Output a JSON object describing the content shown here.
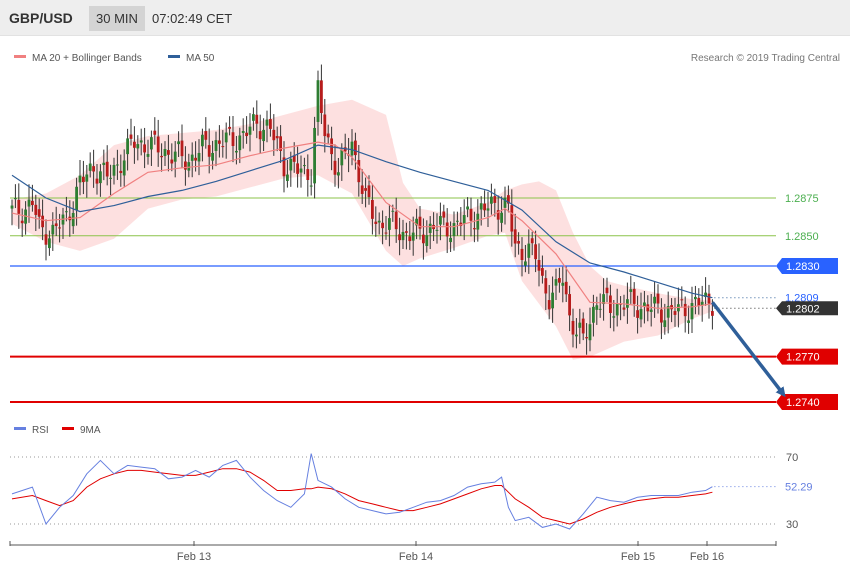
{
  "header": {
    "symbol": "GBP/USD",
    "timeframe": "30 MIN",
    "time": "07:02:49 CET"
  },
  "legend": {
    "items": [
      {
        "label": "MA 20 + Bollinger Bands",
        "color": "#f08080"
      },
      {
        "label": "MA 50",
        "color": "#2f5f99"
      }
    ],
    "copyright": "Research © 2019 Trading Central"
  },
  "colors": {
    "up": "#2e7d32",
    "down": "#b71c1c",
    "ma50": "#2f5f99",
    "ma20": "#f08080",
    "bands_fill": "#fddada",
    "rsi": "#6680e0",
    "rsi_ma": "#e00000",
    "resistance_green": "#8bc34a",
    "level_blue": "#2962ff",
    "support_red": "#e00000",
    "arrow": "#2f5f99"
  },
  "chart_data": {
    "type": "candlestick",
    "x_labels": [
      "Feb 13",
      "Feb 14",
      "Feb 15",
      "Feb 16"
    ],
    "ylim": [
      1.27,
      1.299
    ],
    "levels": [
      {
        "value": 1.2875,
        "label": "1.2875",
        "kind": "resistance",
        "color": "#8bc34a"
      },
      {
        "value": 1.285,
        "label": "1.2850",
        "kind": "resistance",
        "color": "#8bc34a"
      },
      {
        "value": 1.283,
        "label": "1.2830",
        "kind": "pivot",
        "color": "#2962ff"
      },
      {
        "value": 1.277,
        "label": "1.2770",
        "kind": "support",
        "color": "#e00000"
      },
      {
        "value": 1.274,
        "label": "1.2740",
        "kind": "support",
        "color": "#e00000"
      }
    ],
    "ma50_current": {
      "value": 1.2809,
      "label": "1.2809"
    },
    "last_price": {
      "value": 1.2802,
      "label": "1.2802"
    },
    "close_path": [
      [
        0,
        1.2866
      ],
      [
        4,
        1.2868
      ],
      [
        6,
        1.2872
      ],
      [
        8,
        1.2855
      ],
      [
        12,
        1.2852
      ],
      [
        16,
        1.2862
      ],
      [
        20,
        1.2884
      ],
      [
        24,
        1.2896
      ],
      [
        28,
        1.2888
      ],
      [
        32,
        1.29
      ],
      [
        36,
        1.2912
      ],
      [
        40,
        1.291
      ],
      [
        46,
        1.2905
      ],
      [
        52,
        1.29
      ],
      [
        56,
        1.2908
      ],
      [
        62,
        1.2912
      ],
      [
        68,
        1.2916
      ],
      [
        72,
        1.2925
      ],
      [
        76,
        1.292
      ],
      [
        80,
        1.2898
      ],
      [
        84,
        1.2893
      ],
      [
        88,
        1.2892
      ],
      [
        90,
        1.2945
      ],
      [
        92,
        1.2918
      ],
      [
        96,
        1.2893
      ],
      [
        100,
        1.2912
      ],
      [
        104,
        1.2872
      ],
      [
        108,
        1.2858
      ],
      [
        112,
        1.2857
      ],
      [
        116,
        1.2851
      ],
      [
        120,
        1.2852
      ],
      [
        124,
        1.2856
      ],
      [
        130,
        1.2856
      ],
      [
        134,
        1.2862
      ],
      [
        138,
        1.2866
      ],
      [
        142,
        1.2871
      ],
      [
        146,
        1.2868
      ],
      [
        148,
        1.2842
      ],
      [
        152,
        1.284
      ],
      [
        154,
        1.2836
      ],
      [
        156,
        1.282
      ],
      [
        158,
        1.281
      ],
      [
        160,
        1.2812
      ],
      [
        162,
        1.2823
      ],
      [
        164,
        1.2797
      ],
      [
        166,
        1.2787
      ],
      [
        168,
        1.278
      ],
      [
        170,
        1.2794
      ],
      [
        172,
        1.2808
      ],
      [
        176,
        1.2802
      ],
      [
        180,
        1.2806
      ],
      [
        184,
        1.2804
      ],
      [
        188,
        1.2802
      ],
      [
        192,
        1.28
      ],
      [
        196,
        1.28
      ],
      [
        200,
        1.2804
      ],
      [
        204,
        1.2806
      ],
      [
        206,
        1.2807
      ]
    ],
    "ma50_path": [
      [
        0,
        1.289
      ],
      [
        10,
        1.2875
      ],
      [
        20,
        1.2866
      ],
      [
        30,
        1.287
      ],
      [
        40,
        1.2876
      ],
      [
        50,
        1.288
      ],
      [
        60,
        1.2886
      ],
      [
        70,
        1.2893
      ],
      [
        80,
        1.29
      ],
      [
        90,
        1.291
      ],
      [
        100,
        1.2907
      ],
      [
        110,
        1.2899
      ],
      [
        120,
        1.2892
      ],
      [
        130,
        1.2886
      ],
      [
        140,
        1.288
      ],
      [
        150,
        1.2867
      ],
      [
        160,
        1.2846
      ],
      [
        170,
        1.2832
      ],
      [
        180,
        1.2826
      ],
      [
        190,
        1.2819
      ],
      [
        200,
        1.2812
      ],
      [
        206,
        1.2809
      ]
    ],
    "ma20_path": [
      [
        0,
        1.2865
      ],
      [
        10,
        1.286
      ],
      [
        20,
        1.2862
      ],
      [
        30,
        1.2878
      ],
      [
        40,
        1.2892
      ],
      [
        50,
        1.2895
      ],
      [
        60,
        1.2897
      ],
      [
        70,
        1.2903
      ],
      [
        80,
        1.2908
      ],
      [
        90,
        1.2912
      ],
      [
        95,
        1.291
      ],
      [
        100,
        1.2902
      ],
      [
        110,
        1.2872
      ],
      [
        120,
        1.2856
      ],
      [
        130,
        1.2856
      ],
      [
        140,
        1.2862
      ],
      [
        145,
        1.2868
      ],
      [
        150,
        1.286
      ],
      [
        160,
        1.2838
      ],
      [
        165,
        1.2822
      ],
      [
        170,
        1.2806
      ],
      [
        180,
        1.2805
      ],
      [
        190,
        1.2802
      ],
      [
        200,
        1.2803
      ],
      [
        206,
        1.2805
      ]
    ],
    "bands_upper": [
      [
        0,
        1.2874
      ],
      [
        10,
        1.2878
      ],
      [
        20,
        1.289
      ],
      [
        30,
        1.291
      ],
      [
        40,
        1.2916
      ],
      [
        50,
        1.2918
      ],
      [
        60,
        1.292
      ],
      [
        70,
        1.2924
      ],
      [
        80,
        1.293
      ],
      [
        90,
        1.2936
      ],
      [
        100,
        1.294
      ],
      [
        110,
        1.293
      ],
      [
        115,
        1.2885
      ],
      [
        120,
        1.2868
      ],
      [
        130,
        1.2864
      ],
      [
        140,
        1.2872
      ],
      [
        145,
        1.288
      ],
      [
        150,
        1.2884
      ],
      [
        155,
        1.2886
      ],
      [
        160,
        1.288
      ],
      [
        165,
        1.2852
      ],
      [
        170,
        1.283
      ],
      [
        175,
        1.282
      ],
      [
        180,
        1.2817
      ],
      [
        190,
        1.2812
      ],
      [
        200,
        1.2808
      ],
      [
        206,
        1.2807
      ]
    ],
    "bands_lower": [
      [
        0,
        1.2858
      ],
      [
        10,
        1.2846
      ],
      [
        20,
        1.284
      ],
      [
        30,
        1.2848
      ],
      [
        40,
        1.2868
      ],
      [
        50,
        1.2874
      ],
      [
        60,
        1.2876
      ],
      [
        70,
        1.2882
      ],
      [
        80,
        1.2888
      ],
      [
        90,
        1.289
      ],
      [
        100,
        1.2878
      ],
      [
        110,
        1.284
      ],
      [
        115,
        1.283
      ],
      [
        120,
        1.2835
      ],
      [
        130,
        1.2842
      ],
      [
        140,
        1.285
      ],
      [
        145,
        1.2852
      ],
      [
        150,
        1.282
      ],
      [
        160,
        1.279
      ],
      [
        165,
        1.2768
      ],
      [
        170,
        1.277
      ],
      [
        180,
        1.278
      ],
      [
        190,
        1.2784
      ],
      [
        200,
        1.2795
      ],
      [
        206,
        1.28
      ]
    ],
    "forecast_arrow": {
      "from": [
        206,
        1.2806
      ],
      "to": [
        228,
        1.274
      ]
    },
    "rsi": {
      "label": "RSI",
      "ma_label": "9MA",
      "ylim": [
        20,
        80
      ],
      "levels": [
        {
          "value": 70,
          "label": "70"
        },
        {
          "value": 30,
          "label": "30"
        }
      ],
      "current": {
        "value": 52.29,
        "label": "52.29"
      },
      "rsi_path": [
        [
          0,
          48
        ],
        [
          6,
          52
        ],
        [
          10,
          30
        ],
        [
          14,
          40
        ],
        [
          18,
          47
        ],
        [
          22,
          60
        ],
        [
          26,
          68
        ],
        [
          30,
          60
        ],
        [
          34,
          65
        ],
        [
          38,
          64
        ],
        [
          42,
          63
        ],
        [
          46,
          57
        ],
        [
          50,
          58
        ],
        [
          54,
          62
        ],
        [
          58,
          58
        ],
        [
          62,
          65
        ],
        [
          66,
          68
        ],
        [
          70,
          58
        ],
        [
          74,
          50
        ],
        [
          78,
          44
        ],
        [
          82,
          40
        ],
        [
          86,
          48
        ],
        [
          88,
          72
        ],
        [
          90,
          56
        ],
        [
          94,
          52
        ],
        [
          98,
          45
        ],
        [
          102,
          40
        ],
        [
          106,
          38
        ],
        [
          110,
          36
        ],
        [
          114,
          37
        ],
        [
          118,
          40
        ],
        [
          122,
          43
        ],
        [
          126,
          44
        ],
        [
          130,
          47
        ],
        [
          134,
          52
        ],
        [
          138,
          54
        ],
        [
          142,
          55
        ],
        [
          144,
          58
        ],
        [
          146,
          40
        ],
        [
          148,
          32
        ],
        [
          152,
          34
        ],
        [
          156,
          28
        ],
        [
          160,
          30
        ],
        [
          164,
          27
        ],
        [
          168,
          36
        ],
        [
          172,
          46
        ],
        [
          176,
          44
        ],
        [
          180,
          43
        ],
        [
          184,
          46
        ],
        [
          188,
          47
        ],
        [
          192,
          47
        ],
        [
          196,
          47
        ],
        [
          200,
          49
        ],
        [
          204,
          50
        ],
        [
          206,
          52.29
        ]
      ],
      "ma_path": [
        [
          0,
          45
        ],
        [
          6,
          47
        ],
        [
          10,
          44
        ],
        [
          14,
          41
        ],
        [
          18,
          44
        ],
        [
          22,
          52
        ],
        [
          26,
          57
        ],
        [
          30,
          60
        ],
        [
          34,
          62
        ],
        [
          38,
          62
        ],
        [
          42,
          61
        ],
        [
          46,
          60
        ],
        [
          50,
          59
        ],
        [
          54,
          59
        ],
        [
          58,
          61
        ],
        [
          62,
          63
        ],
        [
          66,
          63
        ],
        [
          70,
          61
        ],
        [
          74,
          56
        ],
        [
          78,
          50
        ],
        [
          82,
          50
        ],
        [
          86,
          51
        ],
        [
          88,
          51
        ],
        [
          90,
          52
        ],
        [
          94,
          51
        ],
        [
          98,
          48
        ],
        [
          102,
          44
        ],
        [
          106,
          42
        ],
        [
          110,
          40
        ],
        [
          114,
          38
        ],
        [
          118,
          38
        ],
        [
          122,
          40
        ],
        [
          126,
          42
        ],
        [
          130,
          45
        ],
        [
          134,
          48
        ],
        [
          138,
          51
        ],
        [
          142,
          53
        ],
        [
          144,
          53
        ],
        [
          146,
          49
        ],
        [
          148,
          45
        ],
        [
          152,
          40
        ],
        [
          156,
          34
        ],
        [
          160,
          32
        ],
        [
          164,
          30
        ],
        [
          168,
          33
        ],
        [
          172,
          37
        ],
        [
          176,
          40
        ],
        [
          180,
          42
        ],
        [
          184,
          44
        ],
        [
          188,
          45
        ],
        [
          192,
          46
        ],
        [
          196,
          46
        ],
        [
          200,
          47
        ],
        [
          204,
          48
        ],
        [
          206,
          49
        ]
      ]
    }
  }
}
